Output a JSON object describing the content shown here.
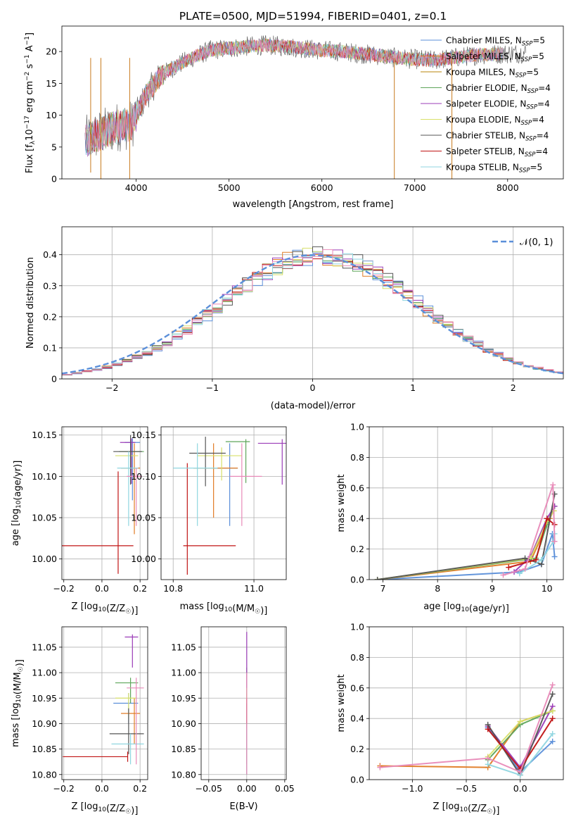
{
  "colors": [
    "#5b8fd9",
    "#e07b24",
    "#5ea55a",
    "#9b3cb7",
    "#d8e06a",
    "#555555",
    "#c01414",
    "#8fd6e0",
    "#e88ab8"
  ],
  "chart_data": [
    {
      "id": "spectrum",
      "type": "line",
      "title": "PLATE=0500, MJD=51994, FIBERID=0401, z=0.1",
      "xlabel": "wavelength [Angstrom, rest frame]",
      "ylabel_parts": [
        "Flux [f",
        "λ",
        "10",
        "−17",
        " erg cm",
        "−2",
        " s",
        "−1",
        " A",
        "−1",
        "]"
      ],
      "xlim": [
        3200,
        8600
      ],
      "ylim": [
        0,
        24
      ],
      "xticks": [
        4000,
        5000,
        6000,
        7000,
        8000
      ],
      "yticks": [
        0,
        5,
        10,
        15,
        20
      ],
      "continuum_x": [
        3450,
        3600,
        3800,
        3950,
        4000,
        4100,
        4250,
        4400,
        4600,
        4800,
        5000,
        5200,
        5400,
        5600,
        5800,
        6000,
        6200,
        6400,
        6600,
        6800,
        7000,
        7200,
        7400,
        7700,
        7900,
        8200
      ],
      "continuum_y": [
        6,
        7,
        8.2,
        8.5,
        10,
        13,
        16,
        17.5,
        19,
        20.2,
        20.5,
        20.8,
        21,
        20.8,
        20.5,
        20.2,
        20,
        19.7,
        19.4,
        19,
        18.8,
        18.6,
        19,
        19.5,
        19.6,
        19.8
      ],
      "spikes": [
        {
          "x": 3930,
          "y": 0
        },
        {
          "x": 6780,
          "y": 0
        },
        {
          "x": 7400,
          "y": 0
        },
        {
          "x": 3510,
          "y": 1
        },
        {
          "x": 3620,
          "y": 0
        }
      ],
      "legend": [
        {
          "base": "Chabrier MILES, N",
          "sub": "SSP",
          "tail": "=5"
        },
        {
          "base": "Salpeter MILES, N",
          "sub": "SSP",
          "tail": "=5"
        },
        {
          "base": "Kroupa MILES, N",
          "sub": "SSP",
          "tail": "=5"
        },
        {
          "base": "Chabrier ELODIE, N",
          "sub": "SSP",
          "tail": "=4"
        },
        {
          "base": "Salpeter ELODIE, N",
          "sub": "SSP",
          "tail": "=4"
        },
        {
          "base": "Kroupa ELODIE, N",
          "sub": "SSP",
          "tail": "=4"
        },
        {
          "base": "Chabrier STELIB, N",
          "sub": "SSP",
          "tail": "=4"
        },
        {
          "base": "Salpeter STELIB, N",
          "sub": "SSP",
          "tail": "=4"
        },
        {
          "base": "Kroupa STELIB, N",
          "sub": "SSP",
          "tail": "=5"
        }
      ],
      "legend_colors": [
        "#5b8fd9",
        "#e07b24",
        "#b8860b",
        "#5ea55a",
        "#9b3cb7",
        "#d8e06a",
        "#555555",
        "#c01414",
        "#8fd6e0"
      ],
      "grid": false
    },
    {
      "id": "residuals",
      "type": "histogram",
      "xlabel": "(data-model)/error",
      "ylabel": "Normed distribution",
      "xlim": [
        -2.5,
        2.5
      ],
      "ylim": [
        0,
        0.49
      ],
      "xticks": [
        -2,
        -1,
        0,
        1,
        2
      ],
      "yticks": [
        0.0,
        0.1,
        0.2,
        0.3,
        0.4
      ],
      "bin_width": 0.1,
      "legend": "𝒩(0, 1)",
      "grid": true
    },
    {
      "id": "age_vs_Z",
      "type": "scatter",
      "xlabel": "Z [log10(Z/Z☉)]",
      "ylabel": "age  [log10(age/yr)]",
      "xlim": [
        -0.21,
        0.24
      ],
      "ylim": [
        9.975,
        10.16
      ],
      "xticks": [
        -0.2,
        0.0,
        0.2
      ],
      "yticks": [
        10.0,
        10.05,
        10.1,
        10.15
      ],
      "points": [
        {
          "x": 0.16,
          "y": 10.141,
          "xerr": [
            0.04,
            0.04
          ],
          "yerr": [
            0.07,
            0.005
          ],
          "c": 0
        },
        {
          "x": 0.17,
          "y": 10.11,
          "xerr": [
            0.07,
            0.03
          ],
          "yerr": [
            0.08,
            0.03
          ],
          "c": 1
        },
        {
          "x": 0.15,
          "y": 10.13,
          "xerr": [
            0.06,
            0.07
          ],
          "yerr": [
            0.03,
            0.01
          ],
          "c": 2
        },
        {
          "x": 0.155,
          "y": 10.141,
          "xerr": [
            0.06,
            0.02
          ],
          "yerr": [
            0.05,
            0.005
          ],
          "c": 3
        },
        {
          "x": 0.15,
          "y": 10.125,
          "xerr": [
            0.08,
            0.04
          ],
          "yerr": [
            0.03,
            0.01
          ],
          "c": 4
        },
        {
          "x": 0.15,
          "y": 10.13,
          "xerr": [
            0.09,
            0.06
          ],
          "yerr": [
            0.04,
            0.02
          ],
          "c": 5
        },
        {
          "x": 0.085,
          "y": 10.016,
          "xerr": [
            0.3,
            0.08
          ],
          "yerr": [
            0.034,
            0.09
          ],
          "c": 6
        },
        {
          "x": 0.14,
          "y": 10.11,
          "xerr": [
            0.06,
            0.05
          ],
          "yerr": [
            0.07,
            0.02
          ],
          "c": 7
        },
        {
          "x": 0.18,
          "y": 10.1,
          "xerr": [
            0.05,
            0.03
          ],
          "yerr": [
            0.06,
            0.01
          ],
          "c": 8
        }
      ],
      "grid": true
    },
    {
      "id": "age_vs_mass",
      "type": "scatter",
      "xlabel": "mass [log10(M/M☉)]",
      "ylabel": "",
      "xlim": [
        10.77,
        11.08
      ],
      "ylim": [
        9.975,
        10.16
      ],
      "xticks": [
        10.8,
        11.0
      ],
      "yticks": [
        10.0,
        10.05,
        10.1,
        10.15
      ],
      "points": [
        {
          "x": 10.94,
          "y": 10.11,
          "xerr": [
            0.04,
            0.02
          ],
          "yerr": [
            0.07,
            0.03
          ],
          "c": 0
        },
        {
          "x": 10.9,
          "y": 10.11,
          "xerr": [
            0.05,
            0.06
          ],
          "yerr": [
            0.06,
            0.03
          ],
          "c": 1
        },
        {
          "x": 10.98,
          "y": 10.142,
          "xerr": [
            0.05,
            0.01
          ],
          "yerr": [
            0.05,
            0.003
          ],
          "c": 2
        },
        {
          "x": 11.07,
          "y": 10.14,
          "xerr": [
            0.06,
            0.01
          ],
          "yerr": [
            0.05,
            0.005
          ],
          "c": 3
        },
        {
          "x": 10.92,
          "y": 10.125,
          "xerr": [
            0.06,
            0.05
          ],
          "yerr": [
            0.03,
            0.01
          ],
          "c": 4
        },
        {
          "x": 10.88,
          "y": 10.128,
          "xerr": [
            0.04,
            0.05
          ],
          "yerr": [
            0.04,
            0.02
          ],
          "c": 5
        },
        {
          "x": 10.835,
          "y": 10.016,
          "xerr": [
            0.01,
            0.12
          ],
          "yerr": [
            0.035,
            0.1
          ],
          "c": 6
        },
        {
          "x": 10.86,
          "y": 10.11,
          "xerr": [
            0.06,
            0.05
          ],
          "yerr": [
            0.07,
            0.03
          ],
          "c": 7
        },
        {
          "x": 10.97,
          "y": 10.1,
          "xerr": [
            0.03,
            0.05
          ],
          "yerr": [
            0.06,
            0.04
          ],
          "c": 8
        }
      ],
      "grid": true
    },
    {
      "id": "weight_vs_age",
      "type": "line",
      "xlabel": "age  [log10(age/yr)]",
      "ylabel": "mass weight",
      "xlim": [
        6.75,
        10.3
      ],
      "ylim": [
        0,
        1
      ],
      "xticks": [
        7,
        8,
        9,
        10
      ],
      "yticks": [
        0.0,
        0.2,
        0.4,
        0.6,
        0.8,
        1.0
      ],
      "series": [
        {
          "c": 0,
          "x": [
            6.9,
            9.5,
            9.9,
            10.1,
            10.14
          ],
          "y": [
            0.0,
            0.05,
            0.1,
            0.3,
            0.15
          ]
        },
        {
          "c": 1,
          "x": [
            6.9,
            9.7,
            10.05,
            10.12
          ],
          "y": [
            0.0,
            0.12,
            0.4,
            0.45
          ]
        },
        {
          "c": 2,
          "x": [
            6.9,
            9.8,
            10.0,
            10.14
          ],
          "y": [
            0.0,
            0.14,
            0.36,
            0.48
          ]
        },
        {
          "c": 3,
          "x": [
            9.4,
            9.7,
            10.0,
            10.14
          ],
          "y": [
            0.05,
            0.15,
            0.4,
            0.48
          ]
        },
        {
          "c": 4,
          "x": [
            6.9,
            9.7,
            10.0,
            10.13
          ],
          "y": [
            0.0,
            0.14,
            0.38,
            0.45
          ]
        },
        {
          "c": 5,
          "x": [
            6.9,
            9.6,
            9.9,
            10.14
          ],
          "y": [
            0.0,
            0.14,
            0.1,
            0.56
          ]
        },
        {
          "c": 6,
          "x": [
            9.3,
            9.8,
            10.0,
            10.14
          ],
          "y": [
            0.08,
            0.13,
            0.4,
            0.36
          ]
        },
        {
          "c": 7,
          "x": [
            9.5,
            9.9,
            10.12,
            10.14
          ],
          "y": [
            0.04,
            0.13,
            0.25,
            0.3
          ]
        },
        {
          "c": 8,
          "x": [
            9.2,
            9.6,
            10.11,
            10.14
          ],
          "y": [
            0.03,
            0.07,
            0.62,
            0.25
          ]
        }
      ],
      "grid": true
    },
    {
      "id": "mass_vs_Z",
      "type": "scatter",
      "xlabel": "Z [log10(Z/Z☉)]",
      "ylabel": "mass [log10(M/M☉)]",
      "xlim": [
        -0.21,
        0.24
      ],
      "ylim": [
        10.79,
        11.09
      ],
      "xticks": [
        -0.2,
        0.0,
        0.2
      ],
      "yticks": [
        10.8,
        10.85,
        10.9,
        10.95,
        11.0,
        11.05
      ],
      "points": [
        {
          "x": 0.14,
          "y": 10.94,
          "xerr": [
            0.08,
            0.05
          ],
          "yerr": [
            0.04,
            0.02
          ],
          "c": 0
        },
        {
          "x": 0.17,
          "y": 10.92,
          "xerr": [
            0.07,
            0.03
          ],
          "yerr": [
            0.06,
            0.03
          ],
          "c": 1
        },
        {
          "x": 0.15,
          "y": 10.98,
          "xerr": [
            0.08,
            0.04
          ],
          "yerr": [
            0.04,
            0.01
          ],
          "c": 2
        },
        {
          "x": 0.16,
          "y": 11.07,
          "xerr": [
            0.04,
            0.03
          ],
          "yerr": [
            0.06,
            0.005
          ],
          "c": 3
        },
        {
          "x": 0.14,
          "y": 10.95,
          "xerr": [
            0.07,
            0.04
          ],
          "yerr": [
            0.04,
            0.01
          ],
          "c": 4
        },
        {
          "x": 0.14,
          "y": 10.88,
          "xerr": [
            0.1,
            0.08
          ],
          "yerr": [
            0.04,
            0.05
          ],
          "c": 5
        },
        {
          "x": 0.135,
          "y": 10.835,
          "xerr": [
            0.34,
            0.0
          ],
          "yerr": [
            0.01,
            0.01
          ],
          "c": 6
        },
        {
          "x": 0.15,
          "y": 10.86,
          "xerr": [
            0.1,
            0.07
          ],
          "yerr": [
            0.04,
            0.02
          ],
          "c": 7
        },
        {
          "x": 0.18,
          "y": 10.97,
          "xerr": [
            0.05,
            0.04
          ],
          "yerr": [
            0.15,
            0.02
          ],
          "c": 8
        }
      ],
      "grid": true
    },
    {
      "id": "mass_vs_EBV",
      "type": "scatter",
      "xlabel": "E(B-V)",
      "ylabel": "",
      "xlim": [
        -0.06,
        0.052
      ],
      "ylim": [
        10.79,
        11.09
      ],
      "xticks": [
        -0.05,
        0.0,
        0.05
      ],
      "yticks": [
        10.8,
        10.85,
        10.9,
        10.95,
        11.0,
        11.05
      ],
      "points": [
        {
          "x": 0.0,
          "y": 10.94,
          "xerr": [
            0,
            0
          ],
          "yerr": [
            0.12,
            0.03
          ],
          "c": 0
        },
        {
          "x": 0.0,
          "y": 10.92,
          "xerr": [
            0,
            0
          ],
          "yerr": [
            0.1,
            0.04
          ],
          "c": 1
        },
        {
          "x": 0.0,
          "y": 10.98,
          "xerr": [
            0,
            0
          ],
          "yerr": [
            0.08,
            0.03
          ],
          "c": 2
        },
        {
          "x": 0.0,
          "y": 11.07,
          "xerr": [
            0,
            0
          ],
          "yerr": [
            0.1,
            0.01
          ],
          "c": 3
        },
        {
          "x": 0.0,
          "y": 10.95,
          "xerr": [
            0,
            0
          ],
          "yerr": [
            0.06,
            0.02
          ],
          "c": 4
        },
        {
          "x": 0.0,
          "y": 10.88,
          "xerr": [
            0,
            0
          ],
          "yerr": [
            0.08,
            0.06
          ],
          "c": 5
        },
        {
          "x": 0.0,
          "y": 10.9,
          "xerr": [
            0,
            0
          ],
          "yerr": [
            0.01,
            0.05
          ],
          "c": 6
        },
        {
          "x": 0.0,
          "y": 10.86,
          "xerr": [
            0,
            0
          ],
          "yerr": [
            0.06,
            0.04
          ],
          "c": 7
        },
        {
          "x": 0.0,
          "y": 10.97,
          "xerr": [
            0,
            0
          ],
          "yerr": [
            0.17,
            0.03
          ],
          "c": 8
        }
      ],
      "grid": true
    },
    {
      "id": "weight_vs_Z",
      "type": "line",
      "xlabel": "Z [log10(Z/Z☉)]",
      "ylabel": "mass weight",
      "xlim": [
        -1.4,
        0.4
      ],
      "ylim": [
        0,
        1
      ],
      "xticks": [
        -1.0,
        -0.5,
        0.0
      ],
      "yticks": [
        0.0,
        0.2,
        0.4,
        0.6,
        0.8,
        1.0
      ],
      "series": [
        {
          "c": 0,
          "x": [
            -0.3,
            0.0,
            0.3
          ],
          "y": [
            0.34,
            0.05,
            0.25
          ]
        },
        {
          "c": 1,
          "x": [
            -1.3,
            -0.3,
            0.0,
            0.3
          ],
          "y": [
            0.09,
            0.08,
            0.38,
            0.45
          ]
        },
        {
          "c": 2,
          "x": [
            -0.3,
            0.0,
            0.3
          ],
          "y": [
            0.13,
            0.36,
            0.45
          ]
        },
        {
          "c": 3,
          "x": [
            -0.3,
            0.0,
            0.3
          ],
          "y": [
            0.35,
            0.08,
            0.48
          ]
        },
        {
          "c": 4,
          "x": [
            -0.3,
            0.0,
            0.3
          ],
          "y": [
            0.15,
            0.38,
            0.45
          ]
        },
        {
          "c": 5,
          "x": [
            -0.3,
            0.0,
            0.3
          ],
          "y": [
            0.36,
            0.03,
            0.56
          ]
        },
        {
          "c": 6,
          "x": [
            -0.3,
            0.0,
            0.3
          ],
          "y": [
            0.33,
            0.07,
            0.4
          ]
        },
        {
          "c": 7,
          "x": [
            -0.3,
            0.0,
            0.3
          ],
          "y": [
            0.1,
            0.03,
            0.3
          ]
        },
        {
          "c": 8,
          "x": [
            -1.3,
            -0.3,
            0.0,
            0.3
          ],
          "y": [
            0.08,
            0.14,
            0.05,
            0.62
          ]
        }
      ],
      "grid": true
    }
  ]
}
